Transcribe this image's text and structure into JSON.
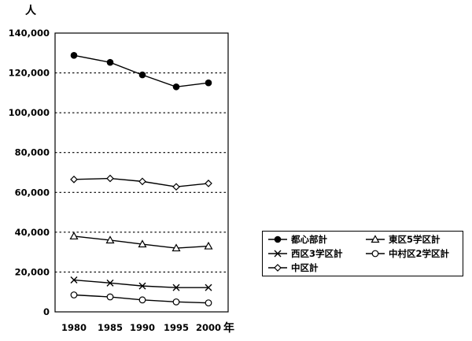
{
  "chart_data": {
    "type": "line",
    "title": "",
    "xlabel": "年",
    "ylabel": "人",
    "x": [
      "1980",
      "1985",
      "1990",
      "1995",
      "2000"
    ],
    "ylim": [
      0,
      140000
    ],
    "yticks": [
      "0",
      "20,000",
      "40,000",
      "60,000",
      "80,000",
      "100,000",
      "120,000",
      "140,000"
    ],
    "grid": "horizontal dotted",
    "legend_position": "right",
    "series": [
      {
        "name": "都心部計",
        "marker": "filled-circle",
        "values": [
          128800,
          125300,
          119000,
          113000,
          115000
        ]
      },
      {
        "name": "東区5学区計",
        "marker": "triangle",
        "values": [
          38000,
          36000,
          34000,
          32000,
          33000
        ]
      },
      {
        "name": "西区3学区計",
        "marker": "cross",
        "values": [
          16000,
          14500,
          13000,
          12200,
          12200
        ]
      },
      {
        "name": "中村区2学区計",
        "marker": "open-circle",
        "values": [
          8500,
          7500,
          6000,
          5000,
          4500
        ]
      },
      {
        "name": "中区計",
        "marker": "diamond",
        "values": [
          66500,
          67000,
          65500,
          62800,
          64500
        ]
      }
    ]
  }
}
